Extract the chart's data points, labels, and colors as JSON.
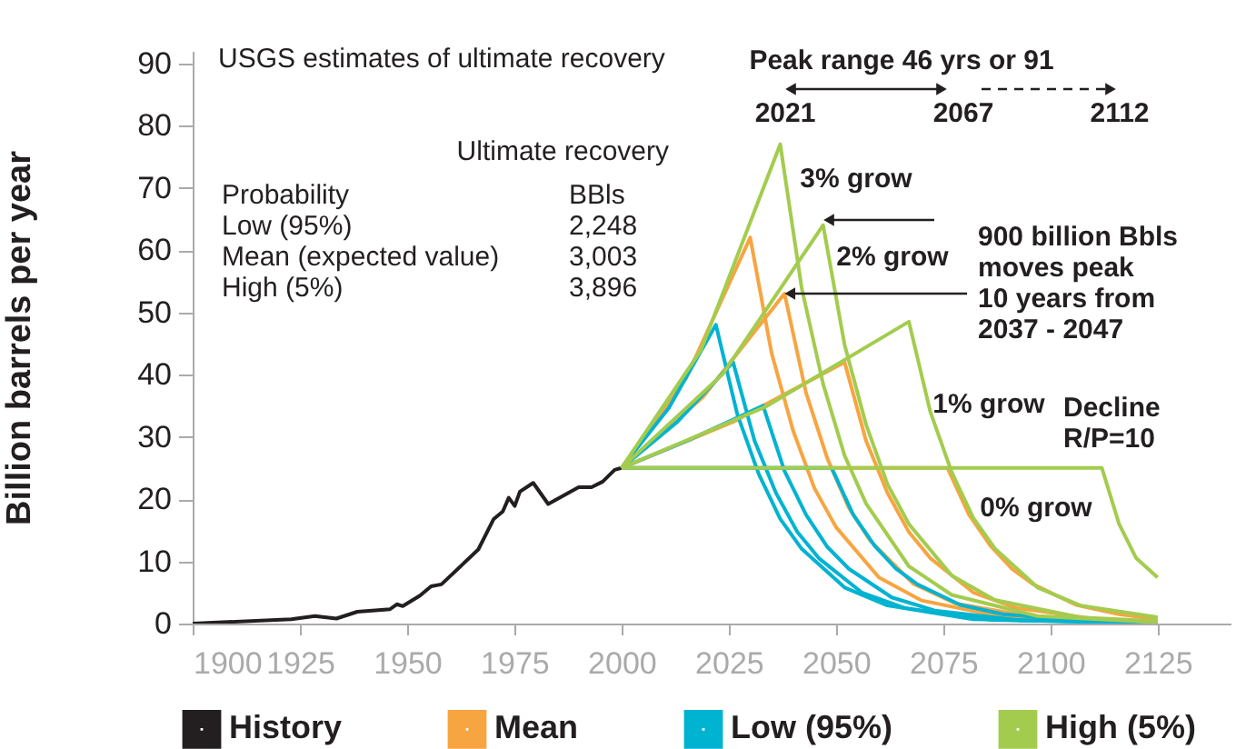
{
  "chart_data": {
    "type": "line",
    "ylabel": "Billion barrels per year",
    "xlim": [
      1900,
      2142
    ],
    "xticks": [
      1900,
      1925,
      1950,
      1975,
      2000,
      2025,
      2050,
      2075,
      2100,
      2125
    ],
    "ylim": [
      0,
      92
    ],
    "yticks": [
      0,
      10,
      20,
      30,
      40,
      50,
      60,
      70,
      80,
      90
    ],
    "grid": false,
    "legend": "bottom",
    "series": [
      {
        "name": "History",
        "color": "#231f20",
        "x": [
          1900,
          1923,
          1928.5,
          1933.5,
          1938.4,
          1946,
          1947.6,
          1949,
          1953,
          1955.6,
          1958,
          1966.6,
          1970.2,
          1972.3,
          1973.7,
          1975.1,
          1976.3,
          1979.4,
          1982.9,
          1990,
          1993,
          1995.6,
          1998.4,
          2000
        ],
        "values": [
          0,
          0.7,
          1.2,
          0.8,
          1.9,
          2.3,
          3.1,
          2.8,
          4.5,
          6.0,
          6.3,
          11.9,
          16.8,
          18,
          20.2,
          18.9,
          21.2,
          22.6,
          19.2,
          21.9,
          21.9,
          22.8,
          24.7,
          25
        ]
      },
      {
        "name": "Mean",
        "color": "#f7a541",
        "x": [
          2000,
          2015,
          2030,
          2035,
          2040,
          2045,
          2050,
          2060,
          2070,
          2090,
          2125
        ],
        "values": [
          25,
          39.4,
          62,
          43.4,
          31,
          21.7,
          15.5,
          7.4,
          3.7,
          0.9,
          0.2
        ]
      },
      {
        "color": "#f7a541",
        "x": [
          2000,
          2019,
          2038,
          2043,
          2048,
          2053,
          2058,
          2068,
          2078,
          2098,
          2125
        ],
        "values": [
          25,
          36.4,
          53,
          37.1,
          26.5,
          18.6,
          13.3,
          6.4,
          3.2,
          0.8,
          0.2
        ]
      },
      {
        "color": "#f7a541",
        "x": [
          2000,
          2026,
          2052,
          2057,
          2062,
          2067,
          2072,
          2082,
          2092,
          2112,
          2125
        ],
        "values": [
          25,
          32.4,
          42,
          29.4,
          21,
          14.7,
          10.5,
          5,
          2.5,
          0.6,
          0.3
        ]
      },
      {
        "color": "#f7a541",
        "x": [
          2000,
          2076,
          2081,
          2086,
          2091,
          2096,
          2106,
          2116,
          2125
        ],
        "values": [
          25,
          25,
          17.5,
          12.5,
          8.8,
          6.3,
          3,
          1.5,
          0.7
        ]
      },
      {
        "name": "Low (95%)",
        "color": "#00b3d1",
        "x": [
          2000,
          2011,
          2022,
          2027,
          2032,
          2037,
          2042,
          2052,
          2062,
          2082,
          2125
        ],
        "values": [
          25,
          34.6,
          48,
          33.6,
          24,
          16.8,
          12,
          5.8,
          2.9,
          0.7,
          0.1
        ]
      },
      {
        "color": "#00b3d1",
        "x": [
          2000,
          2013,
          2026,
          2031,
          2036,
          2041,
          2046,
          2056,
          2066,
          2086,
          2125
        ],
        "values": [
          25,
          32.4,
          42,
          29.4,
          21,
          14.7,
          10.5,
          5,
          2.5,
          0.6,
          0.1
        ]
      },
      {
        "color": "#00b3d1",
        "x": [
          2000,
          2016,
          2033,
          2038,
          2043,
          2048,
          2053,
          2063,
          2073,
          2093,
          2125
        ],
        "values": [
          25,
          29.6,
          35,
          24.5,
          17.5,
          12.3,
          8.8,
          4.2,
          2.1,
          0.5,
          0.1
        ]
      },
      {
        "color": "#00b3d1",
        "x": [
          2000,
          2049,
          2054,
          2059,
          2064,
          2069,
          2079,
          2089,
          2109,
          2125
        ],
        "values": [
          25,
          25,
          17.5,
          12.5,
          8.8,
          6.3,
          3,
          1.5,
          0.4,
          0.1
        ]
      },
      {
        "name": "High (5%)",
        "color": "#a3cc4f",
        "x": [
          2000,
          2018.5,
          2037,
          2042,
          2047,
          2052,
          2057,
          2067,
          2077,
          2097,
          2125
        ],
        "values": [
          25,
          43.9,
          77,
          53.9,
          38.5,
          27,
          19.3,
          9.2,
          4.6,
          1.2,
          0.2
        ]
      },
      {
        "color": "#a3cc4f",
        "x": [
          2000,
          2023.5,
          2047,
          2052,
          2057,
          2062,
          2067,
          2077,
          2087,
          2107,
          2125
        ],
        "values": [
          25,
          40,
          64,
          44.8,
          32,
          22.4,
          16,
          7.7,
          3.8,
          1,
          0.4
        ]
      },
      {
        "color": "#a3cc4f",
        "x": [
          2000,
          2033.5,
          2067,
          2072,
          2077,
          2082,
          2087,
          2097,
          2107,
          2125
        ],
        "values": [
          25,
          34.8,
          48.5,
          34,
          24.3,
          17,
          12.1,
          5.8,
          2.9,
          1
        ]
      },
      {
        "color": "#a3cc4f",
        "x": [
          2000,
          2112,
          2116,
          2120,
          2125
        ],
        "values": [
          25,
          25,
          16,
          10.5,
          7.4
        ]
      }
    ],
    "annotations": [
      "USGS estimates of ultimate recovery",
      "Ultimate recovery",
      "Probability",
      "BBls",
      "Low (95%)",
      "2,248",
      "Mean (expected value)",
      "3,003",
      "High (5%)",
      "3,896",
      "Peak range 46 yrs or 91",
      "2021",
      "2067",
      "2112",
      "3% grow",
      "2% grow",
      "1% grow",
      "0% grow",
      {
        "text": "900 billion Bbls\nmoves peak\n10 years from\n2037 - 2047",
        "x": 2038,
        "y": 53
      },
      "Decline\nR/P=10"
    ]
  }
}
